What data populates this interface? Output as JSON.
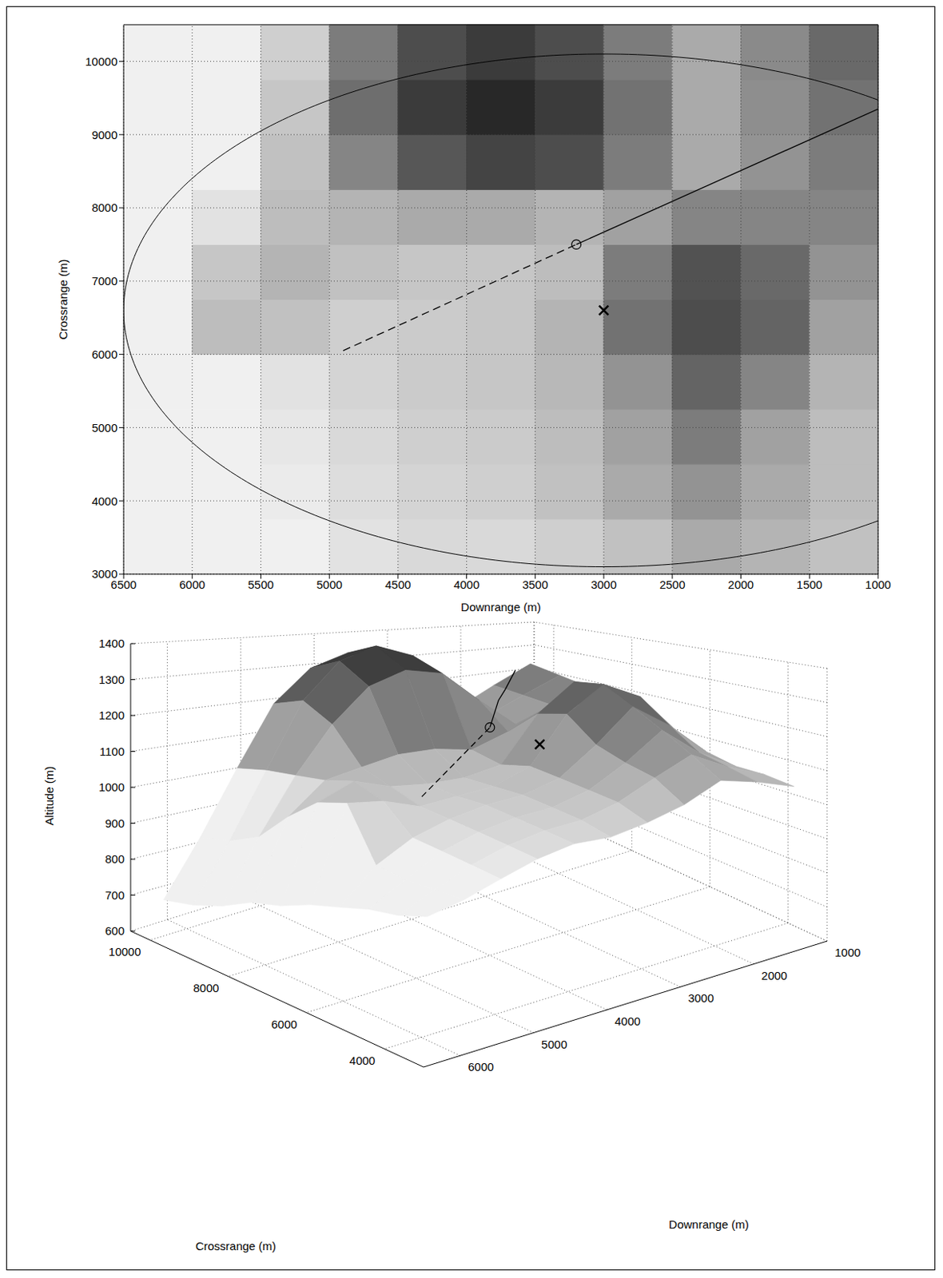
{
  "terrain": {
    "x": [
      6250,
      5750,
      5250,
      4750,
      4250,
      3750,
      3250,
      2750,
      2250,
      1750,
      1250
    ],
    "y": [
      3375,
      4125,
      4875,
      5625,
      6375,
      7125,
      7875,
      8625,
      9375,
      10125
    ],
    "altitude": [
      [
        900,
        920,
        950,
        980,
        1000,
        1000,
        1020,
        1050,
        1100,
        1080,
        1050
      ],
      [
        880,
        920,
        960,
        990,
        1010,
        1020,
        1050,
        1100,
        1150,
        1100,
        1060
      ],
      [
        870,
        920,
        970,
        1000,
        1020,
        1030,
        1060,
        1120,
        1200,
        1120,
        1060
      ],
      [
        850,
        930,
        980,
        1010,
        1030,
        1040,
        1070,
        1150,
        1250,
        1180,
        1080
      ],
      [
        830,
        1060,
        1050,
        1020,
        1030,
        1040,
        1080,
        1220,
        1300,
        1250,
        1120
      ],
      [
        800,
        1040,
        1080,
        1050,
        1040,
        1040,
        1060,
        1200,
        1290,
        1240,
        1150
      ],
      [
        780,
        980,
        1060,
        1080,
        1100,
        1100,
        1080,
        1120,
        1180,
        1180,
        1180
      ],
      [
        740,
        900,
        1050,
        1180,
        1280,
        1320,
        1300,
        1200,
        1100,
        1150,
        1200
      ],
      [
        710,
        860,
        1040,
        1230,
        1340,
        1380,
        1340,
        1220,
        1100,
        1160,
        1220
      ],
      [
        690,
        840,
        1020,
        1200,
        1300,
        1340,
        1300,
        1200,
        1100,
        1170,
        1240
      ]
    ],
    "clim": [
      950,
      1380
    ]
  },
  "chart_data": [
    {
      "type": "map",
      "x_label": "Downrange (m)",
      "y_label": "Crossrange (m)",
      "xlim": [
        6500,
        1000
      ],
      "xticks": [
        6500,
        6000,
        5500,
        5000,
        4500,
        4000,
        3500,
        3000,
        2500,
        2000,
        1500,
        1000
      ],
      "ylim": [
        3000,
        10500
      ],
      "yticks": [
        3000,
        4000,
        5000,
        6000,
        7000,
        8000,
        9000,
        10000
      ],
      "grid": true,
      "series": [
        {
          "type": "ellipse",
          "center": [
            3000,
            6600
          ],
          "radius": [
            3500,
            3500
          ],
          "color": "#000000"
        },
        {
          "type": "line",
          "line_style": "dashed",
          "color": "#000000",
          "x": [
            4900,
            3200
          ],
          "y": [
            6050,
            7500
          ]
        },
        {
          "type": "line",
          "line_style": "solid",
          "color": "#000000",
          "x": [
            3200,
            1000
          ],
          "y": [
            7500,
            9350
          ]
        },
        {
          "type": "scatter",
          "marker": "o",
          "color": "#000000",
          "x": [
            3200
          ],
          "y": [
            7500
          ]
        },
        {
          "type": "scatter",
          "marker": "x",
          "color": "#000000",
          "x": [
            3000
          ],
          "y": [
            6600
          ]
        }
      ]
    },
    {
      "type": "surface",
      "x_label": "Downrange (m)",
      "y_label": "Crossrange (m)",
      "z_label": "Altitude (m)",
      "xlim": [
        1000,
        6500
      ],
      "xticks": [
        1000,
        2000,
        3000,
        4000,
        5000,
        6000
      ],
      "ylim": [
        3000,
        10500
      ],
      "yticks": [
        4000,
        6000,
        8000,
        10000
      ],
      "zlim": [
        600,
        1400
      ],
      "zticks": [
        600,
        700,
        800,
        900,
        1000,
        1100,
        1200,
        1300,
        1400
      ],
      "grid": true,
      "series": [
        {
          "type": "line",
          "line_style": "dashed",
          "color": "#000000",
          "x": [
            4900,
            3200
          ],
          "y": [
            6050,
            7500
          ],
          "z": [
            1060,
            1160
          ]
        },
        {
          "type": "line",
          "line_style": "solid",
          "color": "#000000",
          "x": [
            3200,
            2950,
            2700,
            2400
          ],
          "y": [
            7500,
            7750,
            8050,
            8350
          ],
          "z": [
            1160,
            1230,
            1250,
            1300
          ]
        },
        {
          "type": "scatter",
          "marker": "o",
          "color": "#000000",
          "x": [
            3200
          ],
          "y": [
            7500
          ],
          "z": [
            1160
          ]
        },
        {
          "type": "scatter",
          "marker": "x",
          "color": "#000000",
          "x": [
            3000
          ],
          "y": [
            6600
          ],
          "z": [
            1130
          ]
        }
      ]
    }
  ]
}
